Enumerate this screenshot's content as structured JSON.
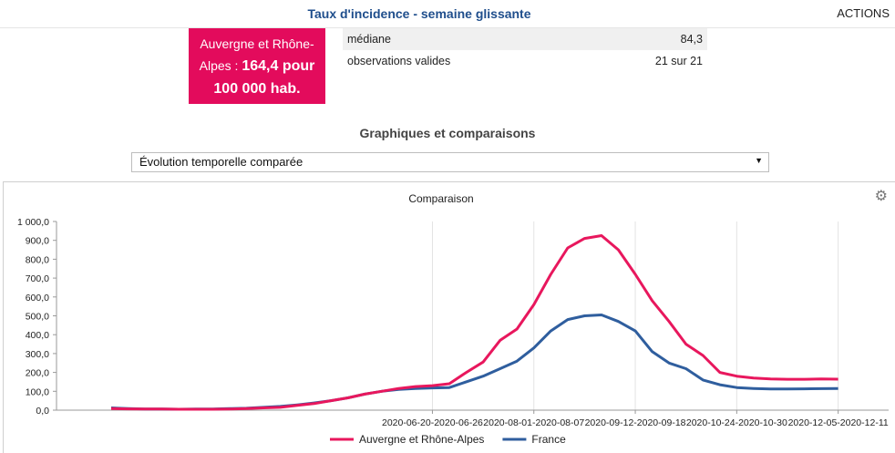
{
  "header": {
    "title": "Taux d'incidence - semaine glissante",
    "actions_label": "ACTIONS"
  },
  "highlight": {
    "line1": "Auvergne et Rhône-",
    "line2_prefix": "Alpes : ",
    "line2_value": "164,4 pour",
    "line3_value": "100 000 hab.",
    "color": "#e30b5c"
  },
  "stats": [
    {
      "label": "médiane",
      "value": "84,3"
    },
    {
      "label": "observations valides",
      "value": "21 sur 21"
    }
  ],
  "section": {
    "title": "Graphiques et comparaisons",
    "select_value": "Évolution temporelle comparée"
  },
  "chart_data": {
    "type": "line",
    "title": "Comparaison",
    "ylim": [
      0,
      1000
    ],
    "y_ticks": [
      "0,0",
      "100,0",
      "200,0",
      "300,0",
      "400,0",
      "500,0",
      "600,0",
      "700,0",
      "800,0",
      "900,0",
      "1 000,0"
    ],
    "x_tick_labels": [
      "2020-06-20-2020-06-26",
      "2020-08-01-2020-08-07",
      "2020-09-12-2020-09-18",
      "2020-10-24-2020-10-30",
      "2020-12-05-2020-12-11"
    ],
    "x_tick_index": [
      19,
      25,
      31,
      37,
      43
    ],
    "n_points": 44,
    "grid": "vertical",
    "legend_position": "bottom",
    "series": [
      {
        "name": "Auvergne et Rhône-Alpes",
        "color": "#e8175d",
        "values": [
          8,
          7,
          6,
          6,
          5,
          5,
          5,
          6,
          8,
          12,
          15,
          25,
          35,
          50,
          65,
          85,
          100,
          115,
          125,
          130,
          140,
          200,
          255,
          370,
          430,
          560,
          720,
          860,
          910,
          925,
          850,
          720,
          580,
          470,
          350,
          290,
          200,
          180,
          170,
          165,
          164,
          164,
          165,
          164.4
        ]
      },
      {
        "name": "France",
        "color": "#2f5e9e",
        "values": [
          12,
          8,
          6,
          6,
          5,
          6,
          6,
          8,
          10,
          15,
          20,
          28,
          38,
          50,
          65,
          85,
          100,
          110,
          115,
          118,
          120,
          150,
          180,
          220,
          260,
          330,
          420,
          480,
          500,
          505,
          470,
          420,
          310,
          250,
          220,
          160,
          135,
          120,
          115,
          112,
          112,
          113,
          114,
          115
        ]
      }
    ]
  }
}
